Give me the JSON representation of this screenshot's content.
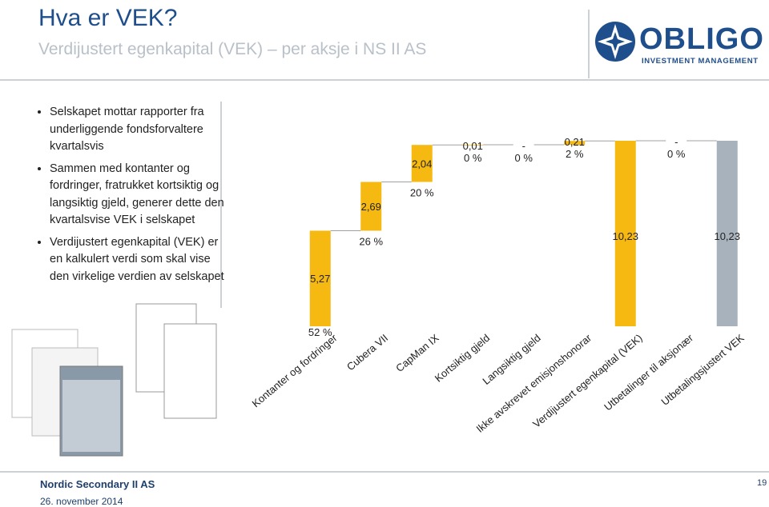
{
  "header": {
    "title": "Hva er VEK?",
    "subtitle": "Verdijustert egenkapital (VEK) – per aksje i NS II AS",
    "logo_name": "OBLIGO",
    "logo_subtitle": "INVESTMENT MANAGEMENT"
  },
  "bullets": [
    "Selskapet mottar rapporter fra underliggende fondsforvaltere kvartalsvis",
    "Sammen med kontanter og fordringer, fratrukket kortsiktig og langsiktig gjeld, generer dette den kvartalsvise VEK i selskapet",
    "Verdijustert egenkapital (VEK) er en kalkulert verdi som skal vise den virkelige verdien av selskapet"
  ],
  "chart_data": {
    "type": "waterfall",
    "categories": [
      "Kontanter og fordringer",
      "Cubera VII",
      "CapMan IX",
      "Kortsiktig gjeld",
      "Langsiktig gjeld",
      "Ikke avskrevet emisjonshonorar",
      "Verdijustert egenkapital (VEK)",
      "Utbetalinger til aksjonær",
      "Utbetalingsjustert VEK"
    ],
    "values": [
      5.27,
      2.69,
      2.04,
      0.01,
      null,
      0.21,
      10.23,
      null,
      10.23
    ],
    "value_labels": [
      "5,27",
      "2,69",
      "2,04",
      "0,01",
      "-",
      "0,21",
      "10,23",
      "-",
      "10,23"
    ],
    "share_labels": [
      "52 %",
      "26 %",
      "20 %",
      "0 %",
      "0 %",
      "2 %",
      null,
      "0 %",
      null
    ],
    "totals": [
      6,
      8
    ],
    "color": "#f6b912",
    "total_colors": [
      "#f6b912",
      "#a8b2bc"
    ],
    "connector_color": "#a0a0a0"
  },
  "footer": {
    "company": "Nordic Secondary II AS",
    "date": "26. november 2014",
    "page": "19"
  }
}
